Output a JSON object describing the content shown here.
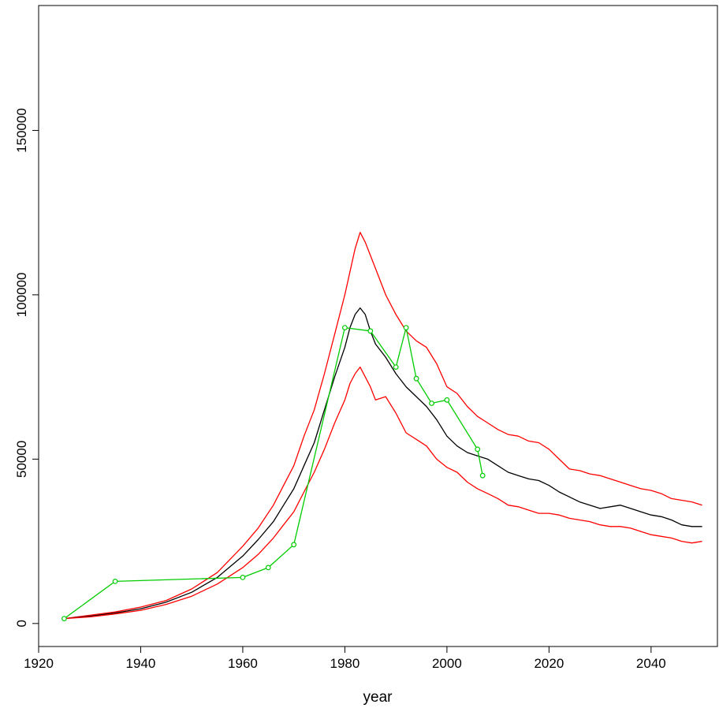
{
  "chart_data": {
    "type": "line",
    "title": "",
    "xlabel": "year",
    "ylabel": "",
    "xlim": [
      1920,
      2053
    ],
    "ylim": [
      -7000,
      188000
    ],
    "x_ticks": [
      1920,
      1940,
      1960,
      1980,
      2000,
      2020,
      2040
    ],
    "y_ticks": [
      0,
      50000,
      100000,
      150000
    ],
    "x_tick_labels": [
      "1920",
      "1940",
      "1960",
      "1980",
      "2000",
      "2020",
      "2040"
    ],
    "y_tick_labels": [
      "0",
      "50000",
      "100000",
      "150000"
    ],
    "grid": false,
    "legend": "none",
    "series": [
      {
        "color": "#ff0000",
        "points": [
          [
            1925,
            1500
          ],
          [
            1930,
            2500
          ],
          [
            1935,
            3500
          ],
          [
            1940,
            5000
          ],
          [
            1945,
            7000
          ],
          [
            1950,
            10500
          ],
          [
            1955,
            15500
          ],
          [
            1960,
            23500
          ],
          [
            1963,
            29000
          ],
          [
            1966,
            36000
          ],
          [
            1968,
            42000
          ],
          [
            1970,
            48000
          ],
          [
            1972,
            57000
          ],
          [
            1974,
            65000
          ],
          [
            1976,
            76000
          ],
          [
            1978,
            88000
          ],
          [
            1980,
            100000
          ],
          [
            1981,
            107000
          ],
          [
            1982,
            114000
          ],
          [
            1983,
            119000
          ],
          [
            1984,
            116000
          ],
          [
            1985,
            112000
          ],
          [
            1986,
            108000
          ],
          [
            1988,
            100000
          ],
          [
            1990,
            94000
          ],
          [
            1992,
            89000
          ],
          [
            1994,
            86000
          ],
          [
            1996,
            84000
          ],
          [
            1998,
            79000
          ],
          [
            2000,
            72000
          ],
          [
            2002,
            70000
          ],
          [
            2004,
            66000
          ],
          [
            2006,
            63000
          ],
          [
            2008,
            61000
          ],
          [
            2010,
            59000
          ],
          [
            2012,
            57500
          ],
          [
            2014,
            57000
          ],
          [
            2016,
            55500
          ],
          [
            2018,
            55000
          ],
          [
            2020,
            53000
          ],
          [
            2022,
            50000
          ],
          [
            2024,
            47000
          ],
          [
            2026,
            46500
          ],
          [
            2028,
            45500
          ],
          [
            2030,
            45000
          ],
          [
            2032,
            44000
          ],
          [
            2034,
            43000
          ],
          [
            2036,
            42000
          ],
          [
            2038,
            41000
          ],
          [
            2040,
            40500
          ],
          [
            2042,
            39500
          ],
          [
            2044,
            38000
          ],
          [
            2046,
            37500
          ],
          [
            2048,
            37000
          ],
          [
            2050,
            36000
          ]
        ]
      },
      {
        "color": "#000000",
        "points": [
          [
            1925,
            1500
          ],
          [
            1930,
            2200
          ],
          [
            1935,
            3200
          ],
          [
            1940,
            4500
          ],
          [
            1945,
            6500
          ],
          [
            1950,
            9500
          ],
          [
            1955,
            14000
          ],
          [
            1960,
            20500
          ],
          [
            1963,
            25500
          ],
          [
            1966,
            31000
          ],
          [
            1968,
            36000
          ],
          [
            1970,
            41000
          ],
          [
            1972,
            48000
          ],
          [
            1974,
            55000
          ],
          [
            1976,
            65000
          ],
          [
            1978,
            75000
          ],
          [
            1980,
            84000
          ],
          [
            1981,
            90000
          ],
          [
            1982,
            94000
          ],
          [
            1983,
            96000
          ],
          [
            1984,
            94000
          ],
          [
            1985,
            89000
          ],
          [
            1986,
            85000
          ],
          [
            1988,
            81000
          ],
          [
            1990,
            76000
          ],
          [
            1992,
            72000
          ],
          [
            1994,
            69000
          ],
          [
            1996,
            66000
          ],
          [
            1998,
            62000
          ],
          [
            2000,
            57000
          ],
          [
            2002,
            54000
          ],
          [
            2004,
            52000
          ],
          [
            2006,
            51000
          ],
          [
            2008,
            50000
          ],
          [
            2010,
            48000
          ],
          [
            2012,
            46000
          ],
          [
            2014,
            45000
          ],
          [
            2016,
            44000
          ],
          [
            2018,
            43500
          ],
          [
            2020,
            42000
          ],
          [
            2022,
            40000
          ],
          [
            2024,
            38500
          ],
          [
            2026,
            37000
          ],
          [
            2028,
            36000
          ],
          [
            2030,
            35000
          ],
          [
            2032,
            35500
          ],
          [
            2034,
            36000
          ],
          [
            2036,
            35000
          ],
          [
            2038,
            34000
          ],
          [
            2040,
            33000
          ],
          [
            2042,
            32500
          ],
          [
            2044,
            31500
          ],
          [
            2046,
            30000
          ],
          [
            2048,
            29500
          ],
          [
            2050,
            29500
          ]
        ]
      },
      {
        "color": "#ff0000",
        "points": [
          [
            1925,
            1500
          ],
          [
            1930,
            2000
          ],
          [
            1935,
            2900
          ],
          [
            1940,
            4000
          ],
          [
            1945,
            5800
          ],
          [
            1950,
            8300
          ],
          [
            1955,
            12000
          ],
          [
            1960,
            17000
          ],
          [
            1963,
            21000
          ],
          [
            1966,
            26000
          ],
          [
            1968,
            30000
          ],
          [
            1970,
            34000
          ],
          [
            1972,
            40000
          ],
          [
            1974,
            46000
          ],
          [
            1976,
            53000
          ],
          [
            1978,
            61000
          ],
          [
            1980,
            68000
          ],
          [
            1981,
            73000
          ],
          [
            1982,
            76000
          ],
          [
            1983,
            78000
          ],
          [
            1984,
            75000
          ],
          [
            1985,
            72000
          ],
          [
            1986,
            68000
          ],
          [
            1988,
            69000
          ],
          [
            1990,
            64000
          ],
          [
            1992,
            58000
          ],
          [
            1994,
            56000
          ],
          [
            1996,
            54000
          ],
          [
            1998,
            50000
          ],
          [
            2000,
            47500
          ],
          [
            2002,
            46000
          ],
          [
            2004,
            43000
          ],
          [
            2006,
            41000
          ],
          [
            2008,
            39500
          ],
          [
            2010,
            38000
          ],
          [
            2012,
            36000
          ],
          [
            2014,
            35500
          ],
          [
            2016,
            34500
          ],
          [
            2018,
            33500
          ],
          [
            2020,
            33500
          ],
          [
            2022,
            33000
          ],
          [
            2024,
            32000
          ],
          [
            2026,
            31500
          ],
          [
            2028,
            31000
          ],
          [
            2030,
            30000
          ],
          [
            2032,
            29500
          ],
          [
            2034,
            29500
          ],
          [
            2036,
            29000
          ],
          [
            2038,
            28000
          ],
          [
            2040,
            27000
          ],
          [
            2042,
            26500
          ],
          [
            2044,
            26000
          ],
          [
            2046,
            25000
          ],
          [
            2048,
            24500
          ],
          [
            2050,
            25000
          ]
        ]
      },
      {
        "color": "#00cc00",
        "markers": true,
        "points": [
          [
            1925,
            1500
          ],
          [
            1935,
            12800
          ],
          [
            1960,
            14000
          ],
          [
            1965,
            17000
          ],
          [
            1970,
            24000
          ],
          [
            1980,
            90000
          ],
          [
            1985,
            89000
          ],
          [
            1990,
            78000
          ],
          [
            1992,
            90000
          ],
          [
            1994,
            74500
          ],
          [
            1997,
            67000
          ],
          [
            2000,
            68000
          ],
          [
            2006,
            53000
          ],
          [
            2007,
            45000
          ]
        ]
      }
    ]
  }
}
